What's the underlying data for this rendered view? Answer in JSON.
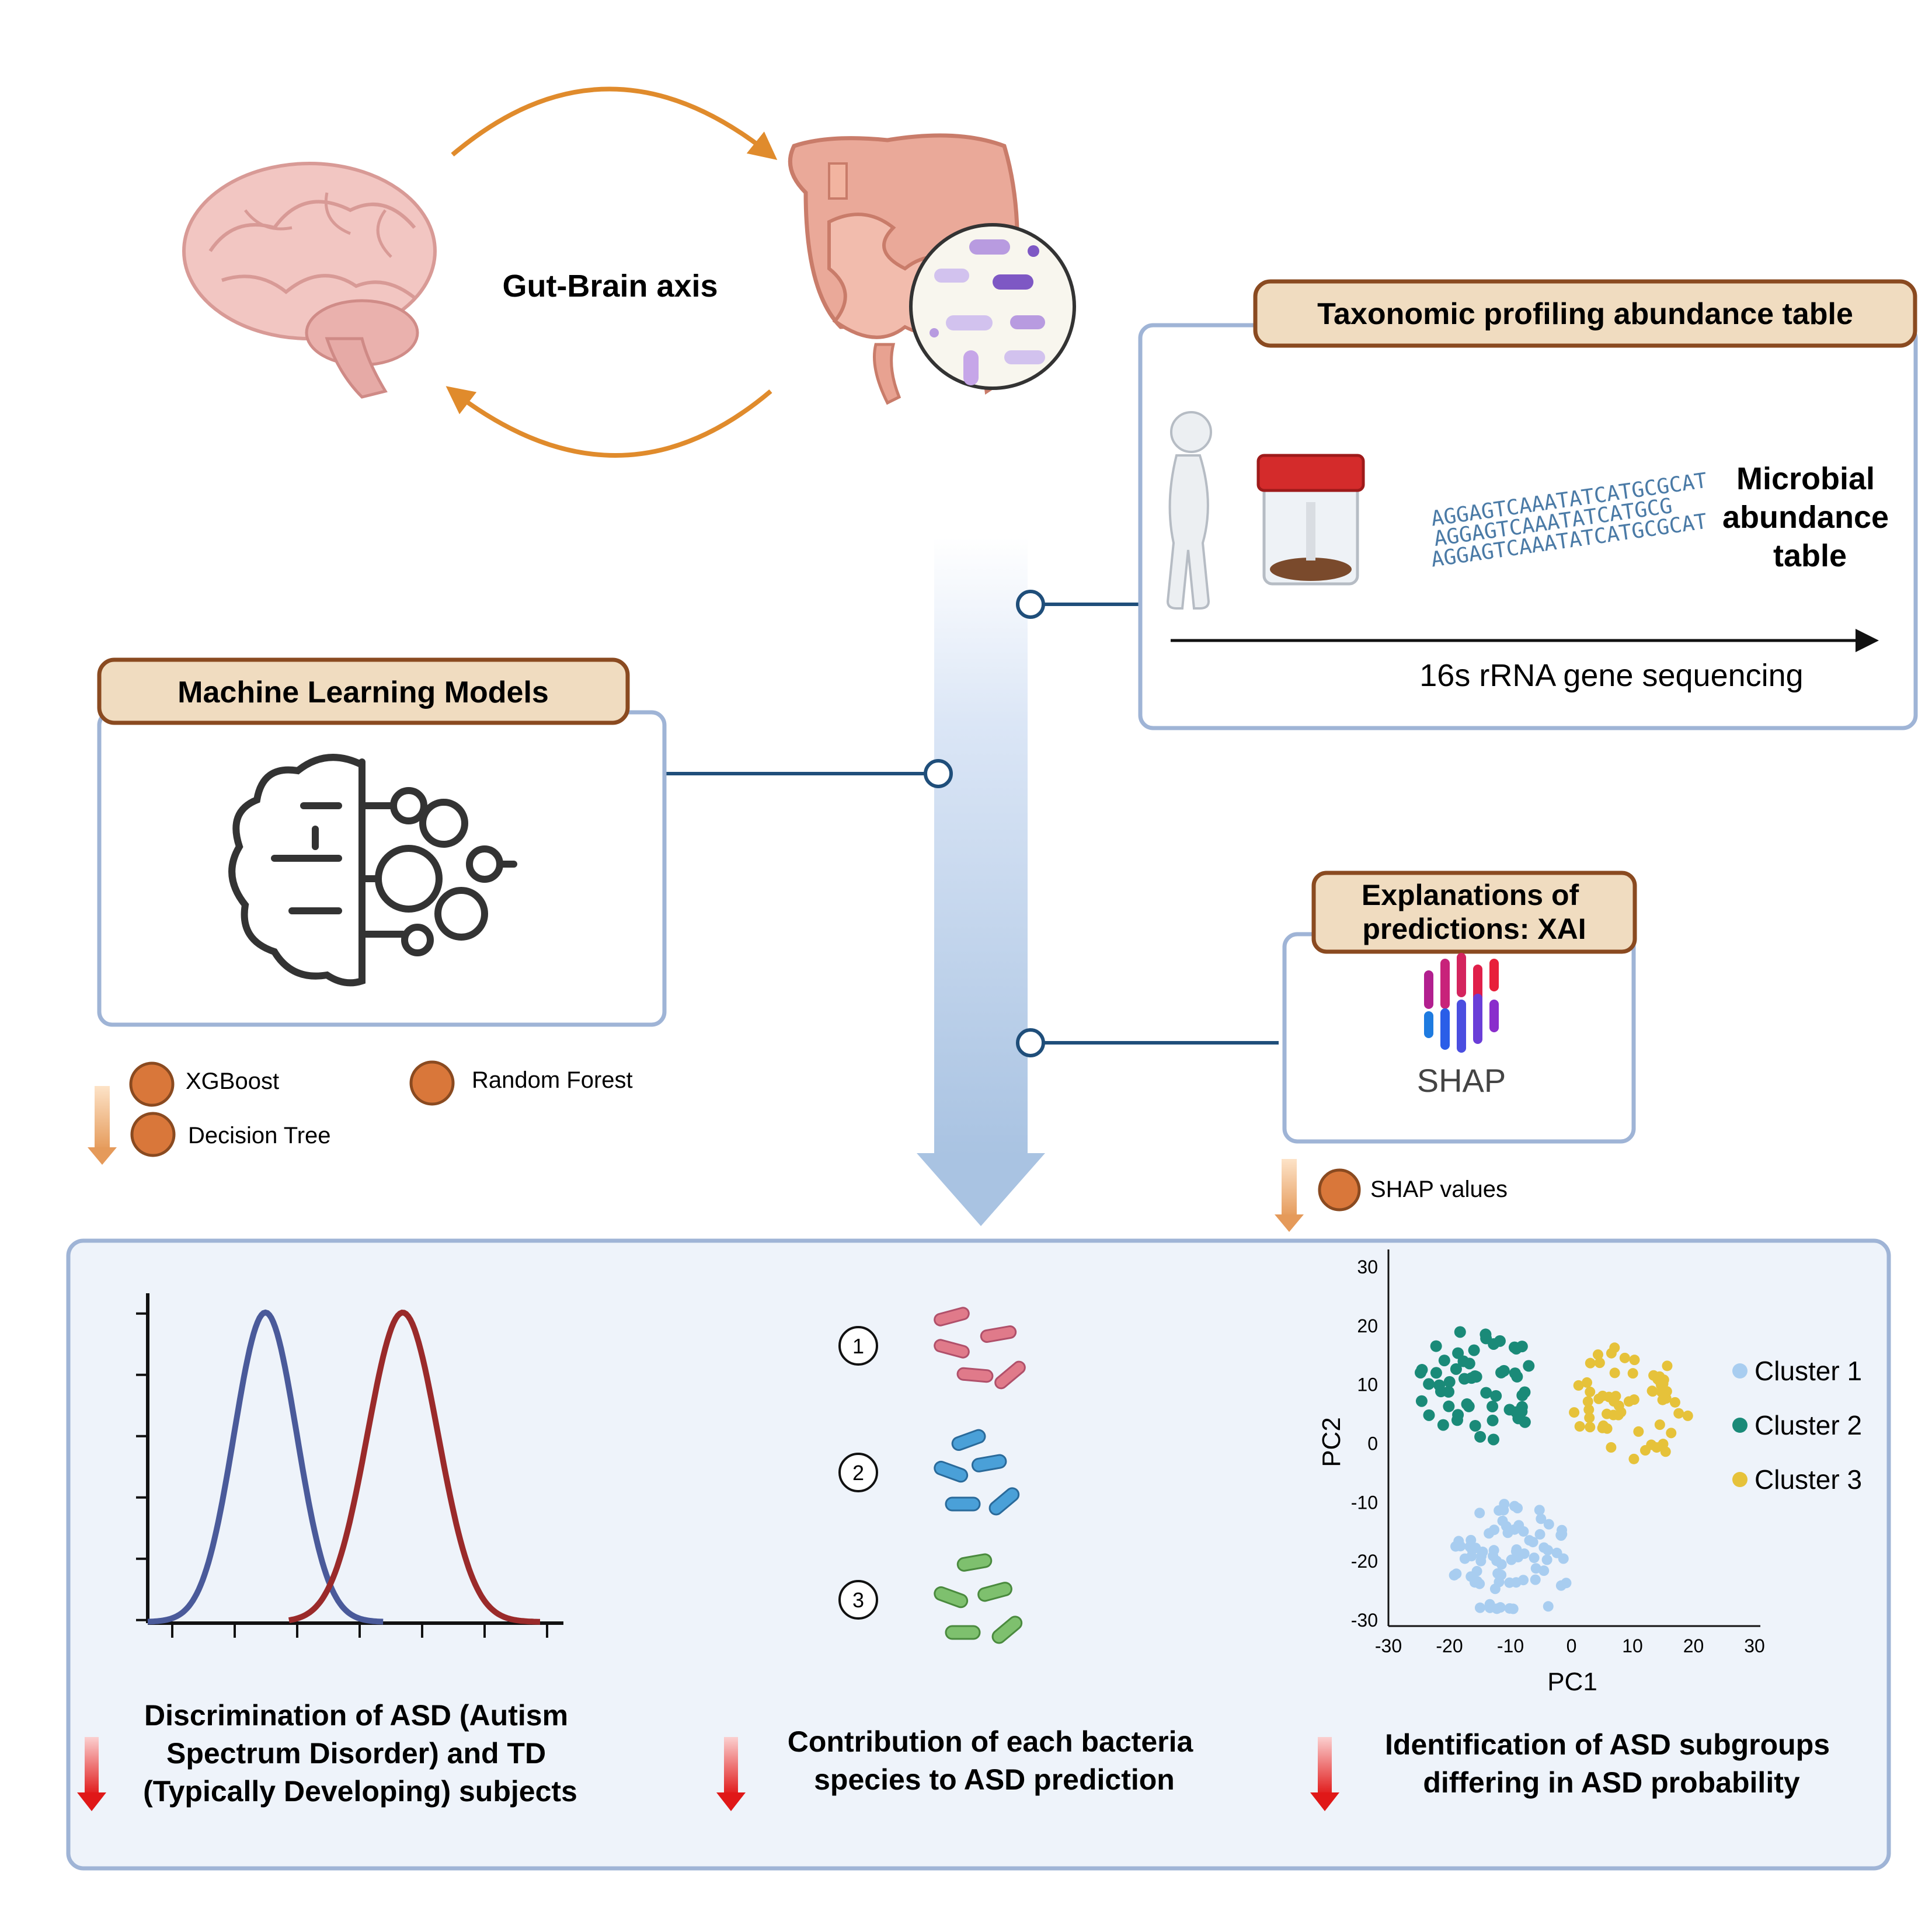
{
  "gut_brain": {
    "label": "Gut-Brain axis"
  },
  "taxonomy": {
    "header": "Taxonomic profiling abundance table",
    "dna_lines": [
      "AGGAGTCAAATATCATGCGCAT",
      "AGGAGTCAAATATCATGCG",
      "AGGAGTCAAATATCATGCGCAT"
    ],
    "table_label": [
      "Microbial",
      "abundance",
      "table"
    ],
    "arrow_label": "16s rRNA gene sequencing"
  },
  "ml": {
    "header": "Machine Learning Models",
    "models": [
      "XGBoost",
      "Random Forest",
      "Decision Tree"
    ]
  },
  "xai": {
    "header": [
      "Explanations of",
      "predictions: XAI"
    ],
    "logo_text": "SHAP",
    "output": "SHAP values"
  },
  "results": {
    "discrimination": [
      "Discrimination of ASD (Autism",
      "Spectrum Disorder) and TD",
      "(Typically Developing) subjects"
    ],
    "contribution": [
      "Contribution of each bacteria",
      "species to ASD prediction"
    ],
    "subgroups": [
      "Identification of ASD subgroups",
      "differing in ASD probability"
    ],
    "species_ranks": [
      "1",
      "2",
      "3"
    ]
  },
  "colors": {
    "box_header_fill": "#f0dcc0",
    "box_header_stroke": "#8a4a20",
    "box_border": "#9fb4d6",
    "connector": "#1f4e7a",
    "model_dot": "#d9773a",
    "orange_arrow": "#e08b2c",
    "td_curve": "#4a5a9a",
    "asd_curve": "#9a2a2a",
    "cluster1": "#a8cdf0",
    "cluster2": "#1a8a78",
    "cluster3": "#e6c23a",
    "results_bg": "#eef3fa"
  },
  "chart_data": [
    {
      "type": "line",
      "title": "",
      "xlabel": "",
      "ylabel": "",
      "series": [
        {
          "mean": 0.3,
          "sd": 0.08,
          "peak": 1.0
        },
        {
          "mean": 0.65,
          "sd": 0.09,
          "peak": 1.0
        }
      ]
    },
    {
      "type": "scatter",
      "xlabel": "PC1",
      "ylabel": "PC2",
      "xlim": [
        -30,
        30
      ],
      "ylim": [
        -30,
        30
      ],
      "xticks": [
        "-30",
        "-20",
        "-10",
        "0",
        "10",
        "20",
        "30"
      ],
      "yticks": [
        "30",
        "20",
        "10",
        "0",
        "-10",
        "-20",
        "-30"
      ],
      "legend": [
        "Cluster 1",
        "Cluster 2",
        "Cluster 3"
      ],
      "legend_position": "right",
      "series": [
        {
          "name": "Cluster 1",
          "center": [
            -10,
            -20
          ],
          "radius": 10,
          "count": 80
        },
        {
          "name": "Cluster 2",
          "center": [
            -15,
            10
          ],
          "radius": 10,
          "count": 55
        },
        {
          "name": "Cluster 3",
          "center": [
            10,
            7
          ],
          "radius": 10,
          "count": 60
        }
      ]
    }
  ]
}
